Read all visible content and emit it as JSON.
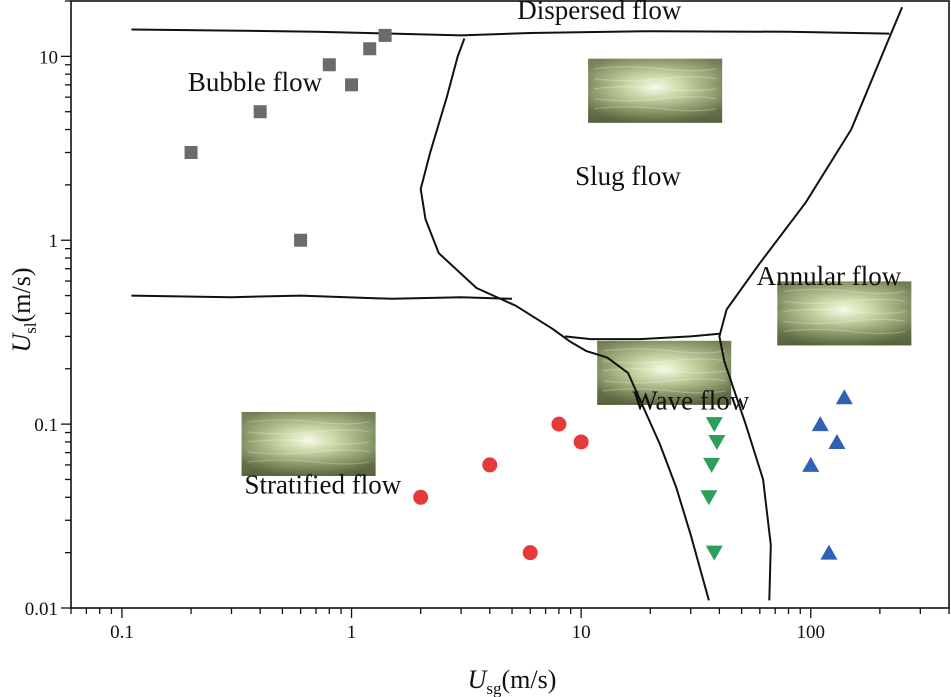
{
  "chart_data": {
    "type": "scatter",
    "title": "",
    "x_scale": "log",
    "y_scale": "log",
    "xlim": [
      0.06,
      400
    ],
    "ylim": [
      0.01,
      20
    ],
    "x_ticks": [
      {
        "value": 0.1,
        "label": "0.1"
      },
      {
        "value": 1,
        "label": "1"
      },
      {
        "value": 10,
        "label": "10"
      },
      {
        "value": 100,
        "label": "100"
      }
    ],
    "y_ticks": [
      {
        "value": 0.01,
        "label": "0.01"
      },
      {
        "value": 0.1,
        "label": "0.1"
      },
      {
        "value": 1,
        "label": "1"
      },
      {
        "value": 10,
        "label": "10"
      }
    ],
    "xlabel": {
      "main": "U",
      "sub": "sg",
      "units": "(m/s)"
    },
    "ylabel": {
      "main": "U",
      "sub": "sl",
      "units": "(m/s)"
    },
    "series": [
      {
        "name": "Bubble flow",
        "marker": "square",
        "color": "#6b6b6b",
        "points": [
          [
            0.2,
            3.0
          ],
          [
            0.4,
            5.0
          ],
          [
            0.6,
            1.0
          ],
          [
            0.8,
            9.0
          ],
          [
            1.0,
            7.0
          ],
          [
            1.2,
            11.0
          ],
          [
            1.4,
            13.0
          ]
        ]
      },
      {
        "name": "Stratified flow",
        "marker": "circle",
        "color": "#e8393a",
        "points": [
          [
            2,
            0.04
          ],
          [
            4,
            0.06
          ],
          [
            6,
            0.02
          ],
          [
            8,
            0.1
          ],
          [
            10,
            0.08
          ]
        ]
      },
      {
        "name": "Wave flow",
        "marker": "triangle-down",
        "color": "#2e9e5b",
        "points": [
          [
            38,
            0.1
          ],
          [
            39,
            0.08
          ],
          [
            37,
            0.06
          ],
          [
            36,
            0.04
          ],
          [
            38,
            0.02
          ]
        ]
      },
      {
        "name": "Annular flow",
        "marker": "triangle-up",
        "color": "#2f62b5",
        "points": [
          [
            140,
            0.14
          ],
          [
            110,
            0.1
          ],
          [
            130,
            0.08
          ],
          [
            100,
            0.06
          ],
          [
            120,
            0.02
          ]
        ]
      }
    ],
    "regions": [
      {
        "name": "Dispersed flow",
        "x": 12,
        "y": 16
      },
      {
        "name": "Bubble flow",
        "x": 0.38,
        "y": 6.5
      },
      {
        "name": "Slug flow",
        "x": 16,
        "y": 2.0
      },
      {
        "name": "Annular flow",
        "x": 120,
        "y": 0.57
      },
      {
        "name": "Wave flow",
        "x": 30,
        "y": 0.12
      },
      {
        "name": "Stratified flow",
        "x": 0.75,
        "y": 0.042
      }
    ],
    "boundaries": [
      {
        "name": "bubble-dispersed",
        "points": [
          [
            0.11,
            14.0
          ],
          [
            0.3,
            13.8
          ],
          [
            0.7,
            13.6
          ],
          [
            1.5,
            13.3
          ],
          [
            3,
            13.0
          ],
          [
            6,
            13.4
          ],
          [
            20,
            13.7
          ],
          [
            80,
            13.6
          ],
          [
            220,
            13.3
          ]
        ]
      },
      {
        "name": "bubble-slug",
        "points": [
          [
            3.1,
            12.5
          ],
          [
            2.9,
            10.0
          ],
          [
            2.6,
            6.0
          ],
          [
            2.2,
            3.0
          ],
          [
            2.0,
            1.9
          ],
          [
            2.1,
            1.3
          ],
          [
            2.4,
            0.85
          ],
          [
            3.5,
            0.55
          ],
          [
            5.2,
            0.44
          ],
          [
            7.5,
            0.33
          ],
          [
            9.0,
            0.28
          ],
          [
            10.5,
            0.25
          ],
          [
            13.0,
            0.23
          ],
          [
            16.0,
            0.19
          ],
          [
            22.0,
            0.078
          ],
          [
            26.0,
            0.045
          ],
          [
            30.0,
            0.025
          ],
          [
            36.0,
            0.011
          ]
        ]
      },
      {
        "name": "stratified-upper",
        "points": [
          [
            0.11,
            0.5
          ],
          [
            0.3,
            0.49
          ],
          [
            0.6,
            0.5
          ],
          [
            1.5,
            0.48
          ],
          [
            3.0,
            0.49
          ],
          [
            5.0,
            0.48
          ]
        ]
      },
      {
        "name": "slug-wave",
        "points": [
          [
            8.5,
            0.3
          ],
          [
            11.0,
            0.29
          ],
          [
            18.0,
            0.29
          ],
          [
            30.0,
            0.3
          ],
          [
            40.0,
            0.31
          ]
        ]
      },
      {
        "name": "slug-annular",
        "points": [
          [
            250,
            18.5
          ],
          [
            210,
            11.0
          ],
          [
            150,
            4.0
          ],
          [
            95,
            1.6
          ],
          [
            60,
            0.75
          ],
          [
            43,
            0.42
          ],
          [
            40,
            0.3
          ],
          [
            42,
            0.22
          ],
          [
            52,
            0.1
          ],
          [
            62,
            0.05
          ],
          [
            67,
            0.022
          ],
          [
            66,
            0.011
          ]
        ]
      }
    ],
    "photos": [
      {
        "name": "dispersed-photo",
        "x": 21,
        "y": 6.5
      },
      {
        "name": "annular-photo",
        "x": 140,
        "y": 0.4
      },
      {
        "name": "wave-photo",
        "x": 23,
        "y": 0.19
      },
      {
        "name": "stratified-photo",
        "x": 0.65,
        "y": 0.078
      }
    ]
  }
}
